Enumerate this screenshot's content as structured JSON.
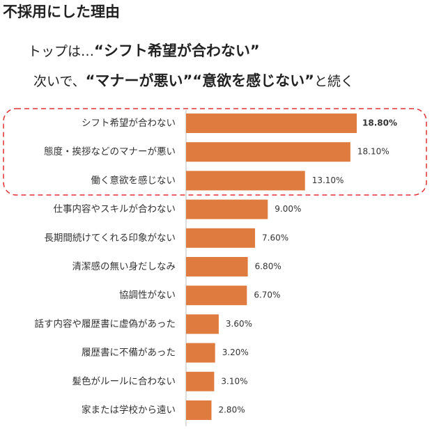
{
  "chart_data": {
    "type": "barh",
    "title": "不採用にした理由",
    "subtitles": [
      [
        "トップは…",
        "“シフト希望が合わない”"
      ],
      [
        "次いで、",
        "“マナーが悪い”“意欲を感じない”",
        "と続く"
      ]
    ],
    "categories": [
      "シフト希望が合わない",
      "態度・挨拶などのマナーが悪い",
      "働く意欲を感じない",
      "仕事内容やスキルが合わない",
      "長期間続けてくれる印象がない",
      "清潔感の無い身だしなみ",
      "協調性がない",
      "話す内容や履歴書に虚偽があった",
      "履歴書に不備があった",
      "髪色がルールに合わない",
      "家または学校から遠い"
    ],
    "values": [
      18.8,
      18.1,
      13.1,
      9.0,
      7.6,
      6.8,
      6.7,
      3.6,
      3.2,
      3.1,
      2.8
    ],
    "value_labels": [
      "18.80%",
      "18.10%",
      "13.10%",
      "9.00%",
      "7.60%",
      "6.80%",
      "6.70%",
      "3.60%",
      "3.20%",
      "3.10%",
      "2.80%"
    ],
    "color": "#e07b3f"
  }
}
